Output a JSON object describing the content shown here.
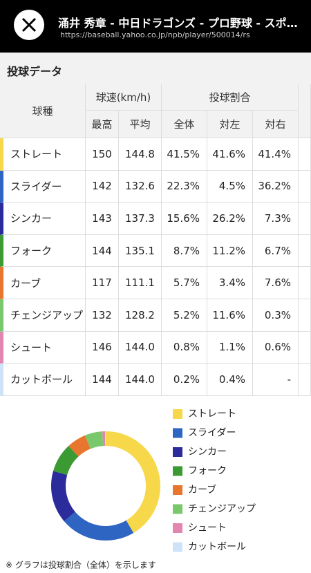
{
  "header": {
    "title": "涌井 秀章 - 中日ドラゴンズ - プロ野球 - スポ…",
    "url": "https://baseball.yahoo.co.jp/npb/player/500014/rs"
  },
  "section_title": "投球データ",
  "table": {
    "group_headers": [
      "球種",
      "球速(km/h)",
      "投球割合"
    ],
    "sub_headers": [
      "最高",
      "平均",
      "全体",
      "対左",
      "対右"
    ],
    "rows": [
      [
        "ストレート",
        "150",
        "144.8",
        "41.5%",
        "41.6%",
        "41.4%"
      ],
      [
        "スライダー",
        "142",
        "132.6",
        "22.3%",
        "4.5%",
        "36.2%"
      ],
      [
        "シンカー",
        "143",
        "137.3",
        "15.6%",
        "26.2%",
        "7.3%"
      ],
      [
        "フォーク",
        "144",
        "135.1",
        "8.7%",
        "11.2%",
        "6.7%"
      ],
      [
        "カーブ",
        "117",
        "111.1",
        "5.7%",
        "3.4%",
        "7.6%"
      ],
      [
        "チェンジアップ",
        "132",
        "128.2",
        "5.2%",
        "11.6%",
        "0.3%"
      ],
      [
        "シュート",
        "146",
        "144.0",
        "0.8%",
        "1.1%",
        "0.6%"
      ],
      [
        "カットボール",
        "144",
        "144.0",
        "0.2%",
        "0.4%",
        "-"
      ]
    ]
  },
  "chart": {
    "type": "pie",
    "categories": [
      "ストレート",
      "スライダー",
      "シンカー",
      "フォーク",
      "カーブ",
      "チェンジアップ",
      "シュート",
      "カットボール"
    ],
    "values": [
      41.5,
      22.3,
      15.6,
      8.7,
      5.7,
      5.2,
      0.8,
      0.2
    ],
    "colors": [
      "#f6d84a",
      "#2e64c2",
      "#2b2b9b",
      "#3c9a33",
      "#e8762e",
      "#79c86b",
      "#e385b1",
      "#cfe3f8"
    ]
  },
  "footnote": "※ グラフは投球割合（全体）を示します"
}
